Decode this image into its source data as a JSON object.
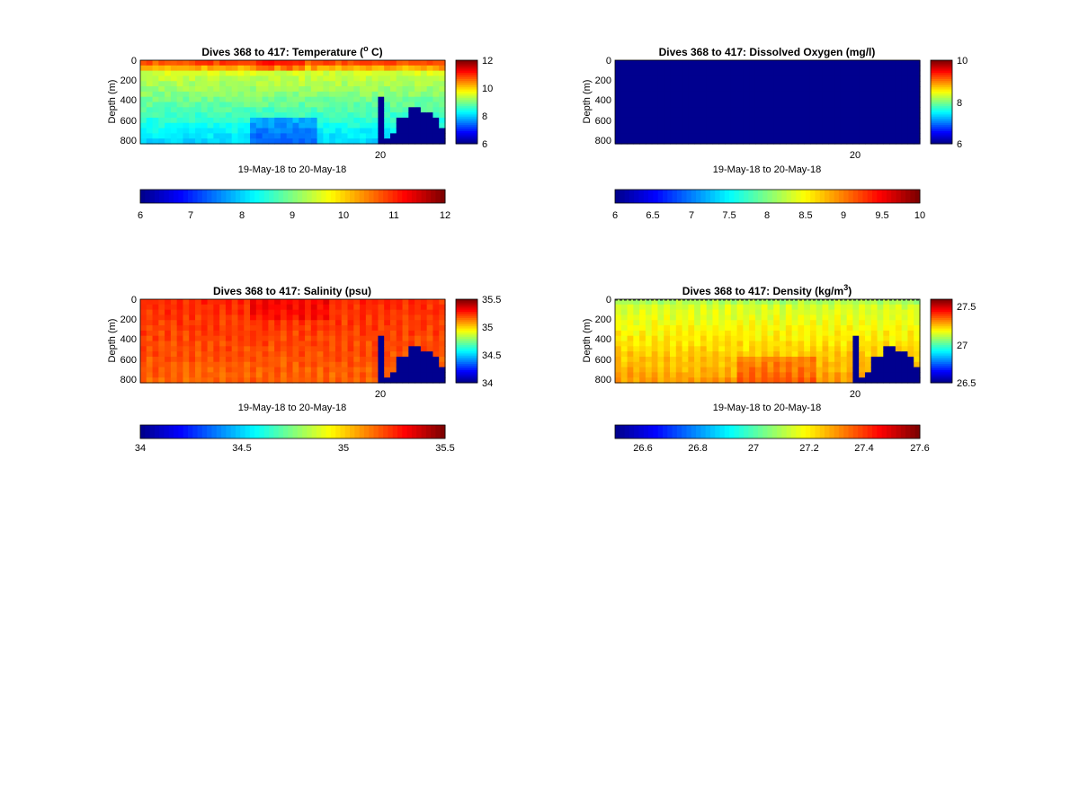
{
  "colormap": [
    "#00008f",
    "#0000ff",
    "#0080ff",
    "#00ffff",
    "#80ff80",
    "#ffff00",
    "#ff8000",
    "#ff0000",
    "#800000"
  ],
  "chart_data": [
    {
      "type": "heatmap",
      "title_main": "Dives 368 to 417: Temperature (",
      "title_sup": "o",
      "title_end": " C)",
      "xlabel": "19-May-18 to 20-May-18",
      "ylabel": "Depth (m)",
      "x_tick_labels": [
        "20"
      ],
      "y_tick_labels": [
        "0",
        "200",
        "400",
        "600",
        "800"
      ],
      "ylim": [
        0,
        850
      ],
      "clim": [
        6,
        12
      ],
      "side_colorbar_ticks": [
        "12",
        "10",
        "8",
        "6"
      ],
      "bottom_colorbar_ticks": [
        "6",
        "7",
        "8",
        "9",
        "10",
        "11",
        "12"
      ],
      "pattern": "temperature"
    },
    {
      "type": "heatmap",
      "title_main": "Dives 368 to 417: Dissolved Oxygen (mg/l)",
      "title_sup": "",
      "title_end": "",
      "xlabel": "19-May-18 to 20-May-18",
      "ylabel": "Depth (m)",
      "x_tick_labels": [
        "20"
      ],
      "y_tick_labels": [
        "0",
        "200",
        "400",
        "600",
        "800"
      ],
      "ylim": [
        0,
        850
      ],
      "clim": [
        6,
        10
      ],
      "side_colorbar_ticks": [
        "10",
        "8",
        "6"
      ],
      "bottom_colorbar_ticks": [
        "6",
        "6.5",
        "7",
        "7.5",
        "8",
        "8.5",
        "9",
        "9.5",
        "10"
      ],
      "pattern": "oxygen"
    },
    {
      "type": "heatmap",
      "title_main": "Dives 368 to 417: Salinity (psu)",
      "title_sup": "",
      "title_end": "",
      "xlabel": "19-May-18 to 20-May-18",
      "ylabel": "Depth (m)",
      "x_tick_labels": [
        "20"
      ],
      "y_tick_labels": [
        "0",
        "200",
        "400",
        "600",
        "800"
      ],
      "ylim": [
        0,
        850
      ],
      "clim": [
        34,
        35.5
      ],
      "side_colorbar_ticks": [
        "35.5",
        "35",
        "34.5",
        "34"
      ],
      "bottom_colorbar_ticks": [
        "34",
        "34.5",
        "35",
        "35.5"
      ],
      "pattern": "salinity"
    },
    {
      "type": "heatmap",
      "title_main": "Dives 368 to 417: Density (kg/m",
      "title_sup": "3",
      "title_end": ")",
      "xlabel": "19-May-18 to 20-May-18",
      "ylabel": "Depth (m)",
      "x_tick_labels": [
        "20"
      ],
      "y_tick_labels": [
        "0",
        "200",
        "400",
        "600",
        "800"
      ],
      "ylim": [
        0,
        850
      ],
      "clim": [
        26.5,
        27.6
      ],
      "side_colorbar_ticks": [
        "27.5",
        "27",
        "26.5"
      ],
      "bottom_colorbar_ticks": [
        "26.6",
        "26.8",
        "27",
        "27.2",
        "27.4",
        "27.6"
      ],
      "pattern": "density"
    }
  ]
}
